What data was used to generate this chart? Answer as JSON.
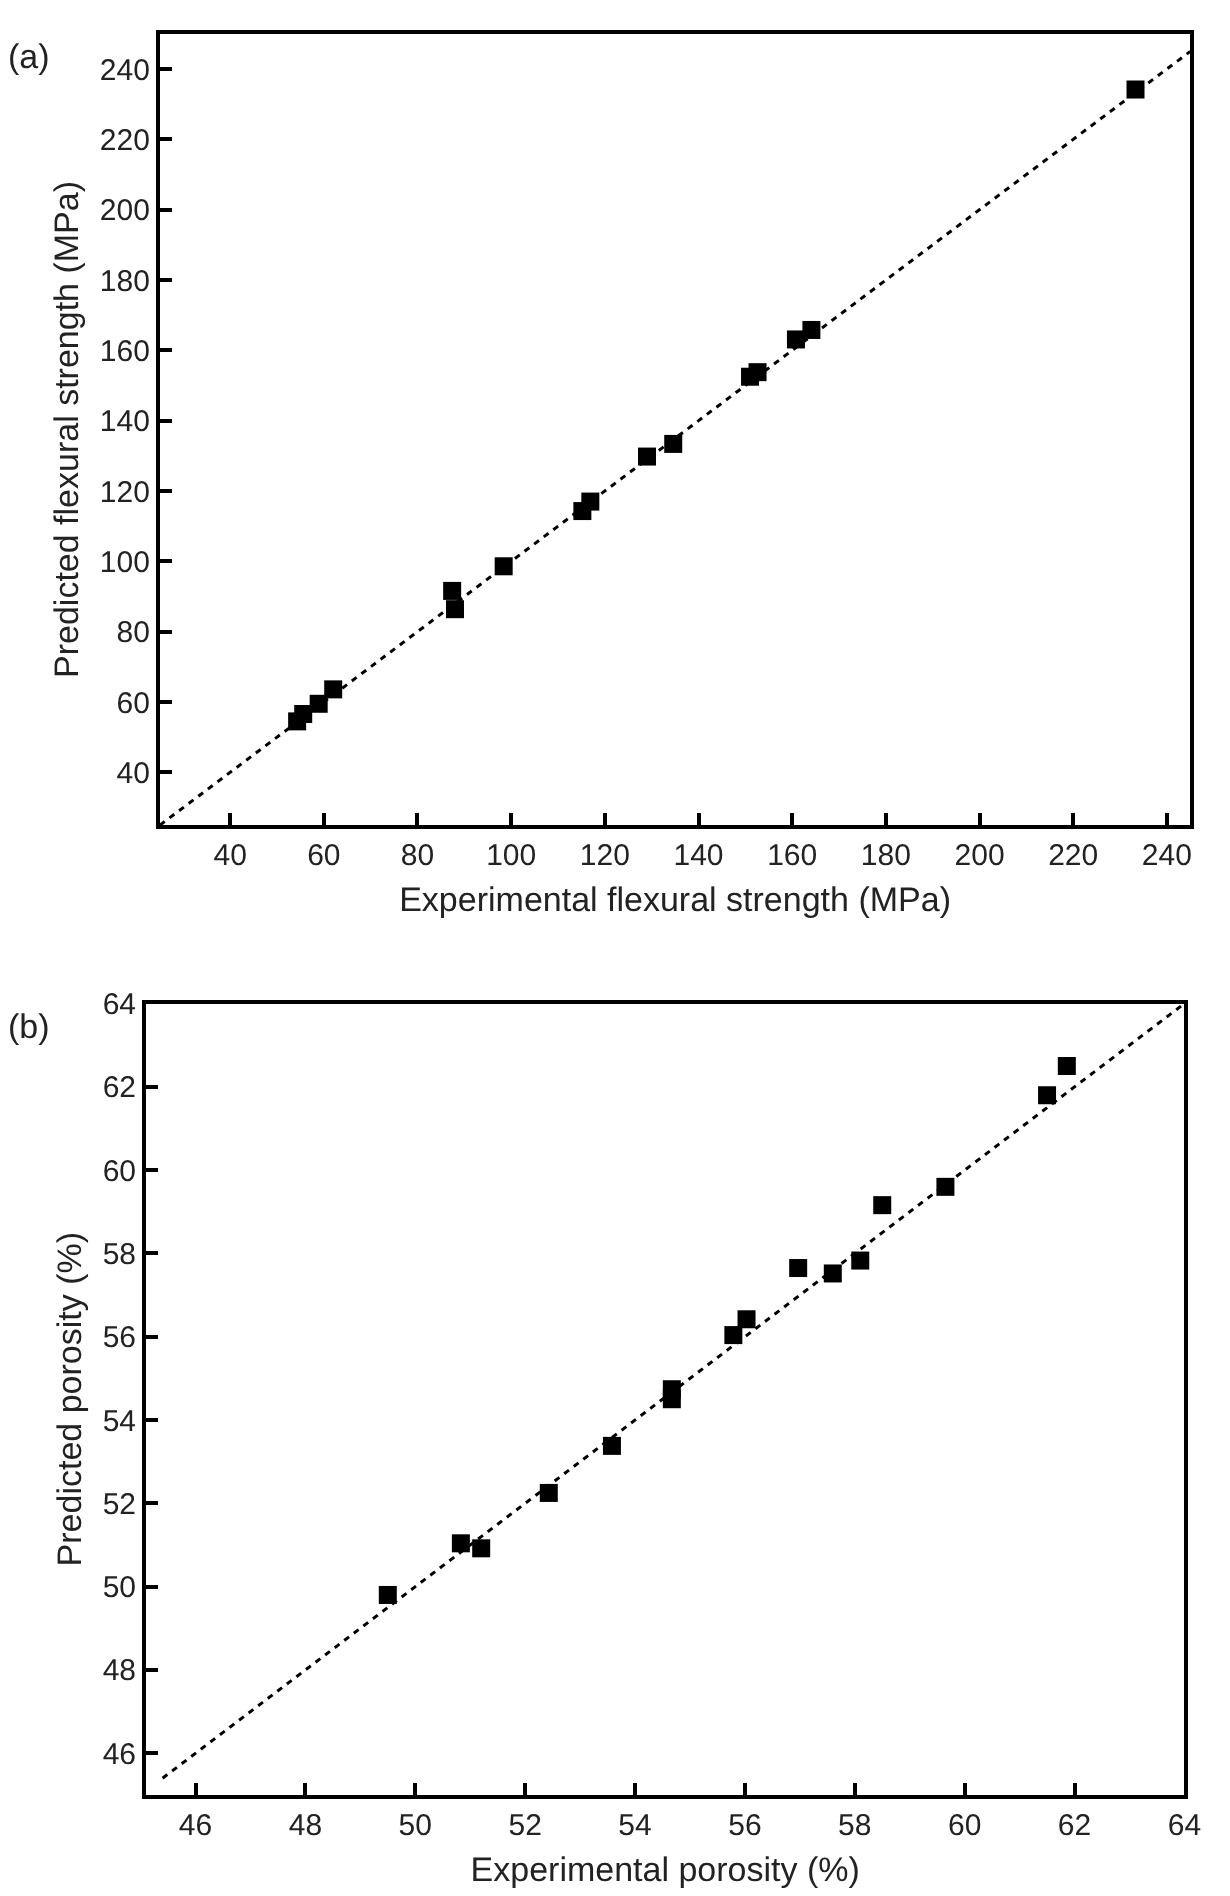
{
  "chart_data": [
    {
      "type": "scatter",
      "xlabel": "Experimental flexural strength (MPa)",
      "ylabel": "Predicted flexural strength (MPa)",
      "annotations": [
        "(a)"
      ],
      "marker": "square",
      "xlim": [
        25,
        245
      ],
      "ylim": [
        25,
        250
      ],
      "xticks": [
        40,
        60,
        80,
        100,
        120,
        140,
        160,
        180,
        200,
        220,
        240
      ],
      "yticks": [
        40,
        60,
        80,
        100,
        120,
        140,
        160,
        180,
        200,
        220,
        240
      ],
      "series": [
        {
          "color": "#000000",
          "x": [
            54.3,
            55.6,
            58.9,
            62.0,
            87.4,
            88.0,
            98.4,
            115.2,
            116.9,
            129,
            134.6,
            151,
            152.6,
            160.8,
            164.1,
            233.3
          ],
          "values": [
            54.5,
            56.6,
            59.5,
            63.6,
            91.6,
            86.4,
            98.6,
            114.3,
            117.0,
            129.8,
            133.4,
            152.5,
            153.8,
            163.1,
            165.8,
            234.2
          ]
        },
        {
          "type": "line",
          "color": "#000000",
          "line_style": "dotted",
          "marker": "none",
          "x": [
            25,
            245
          ],
          "values": [
            25,
            245
          ]
        }
      ]
    },
    {
      "type": "scatter",
      "xlabel": "Experimental porosity (%)",
      "ylabel": "Predicted porosity (%)",
      "annotations": [
        "(b)"
      ],
      "marker": "square",
      "xlim": [
        45.1,
        64
      ],
      "ylim": [
        45,
        64
      ],
      "xticks": [
        46,
        48,
        50,
        52,
        54,
        56,
        58,
        60,
        62,
        64
      ],
      "yticks": [
        46,
        48,
        50,
        52,
        54,
        56,
        58,
        60,
        62,
        64
      ],
      "series": [
        {
          "color": "#000000",
          "x": [
            49.5,
            50.83,
            51.2,
            52.43,
            53.58,
            54.67,
            54.67,
            55.79,
            56.03,
            56.97,
            57.6,
            58.1,
            58.5,
            59.65,
            61.5,
            61.86
          ],
          "values": [
            49.8,
            51.04,
            50.92,
            52.25,
            53.38,
            54.5,
            54.74,
            56.04,
            56.42,
            57.65,
            57.52,
            57.83,
            59.16,
            59.6,
            61.8,
            62.5
          ]
        },
        {
          "type": "line",
          "color": "#000000",
          "line_style": "dotted",
          "marker": "none",
          "x": [
            45.4,
            64
          ],
          "values": [
            45.4,
            64
          ]
        }
      ]
    }
  ]
}
